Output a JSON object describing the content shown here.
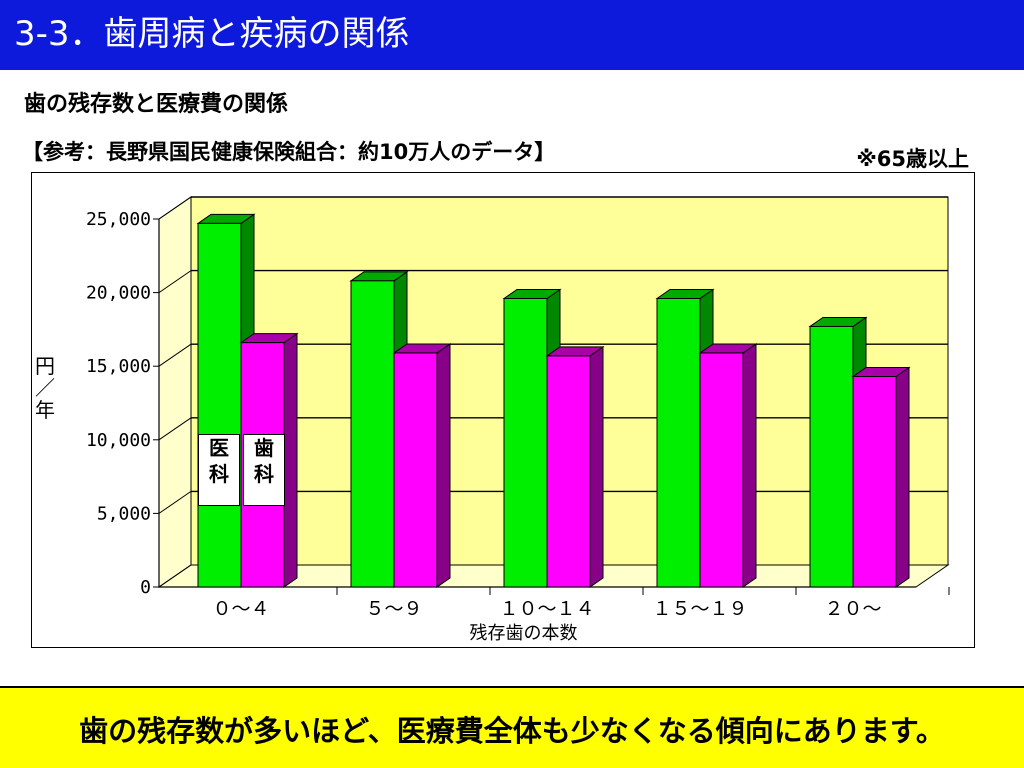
{
  "slide": {
    "title": "3-3．歯周病と疾病の関係",
    "subtitle": "歯の残存数と医療費の関係",
    "source": "【参考：長野県国民健康保険組合：約10万人のデータ】",
    "note": "※65歳以上",
    "conclusion": "歯の残存数が多いほど、医療費全体も少なくなる傾向にあります。"
  },
  "colors": {
    "header_bg": "#0d1adb",
    "medical": "#00ee00",
    "dental": "#ff00ff",
    "plot_bg": "#ffff99",
    "footer_bg": "#ffff00"
  },
  "chart_data": {
    "type": "bar",
    "categories": [
      "０～４",
      "５～９",
      "１０～１４",
      "１５～１９",
      "２０～"
    ],
    "series": [
      {
        "name": "医科",
        "values": [
          24700,
          20800,
          19600,
          19600,
          17700
        ]
      },
      {
        "name": "歯科",
        "values": [
          16600,
          15900,
          15700,
          15900,
          14300
        ]
      }
    ],
    "series_labels_vertical": [
      [
        "医",
        "科"
      ],
      [
        "歯",
        "科"
      ]
    ],
    "xlabel": "残存歯の本数",
    "ylabel": "円／年",
    "ylabel_chars": [
      "円",
      "／",
      "年"
    ],
    "ylim": [
      0,
      25000
    ],
    "yticks": [
      "0",
      "5,000",
      "10,000",
      "15,000",
      "20,000",
      "25,000"
    ],
    "grid": true,
    "legend": "inside-first-bars"
  }
}
